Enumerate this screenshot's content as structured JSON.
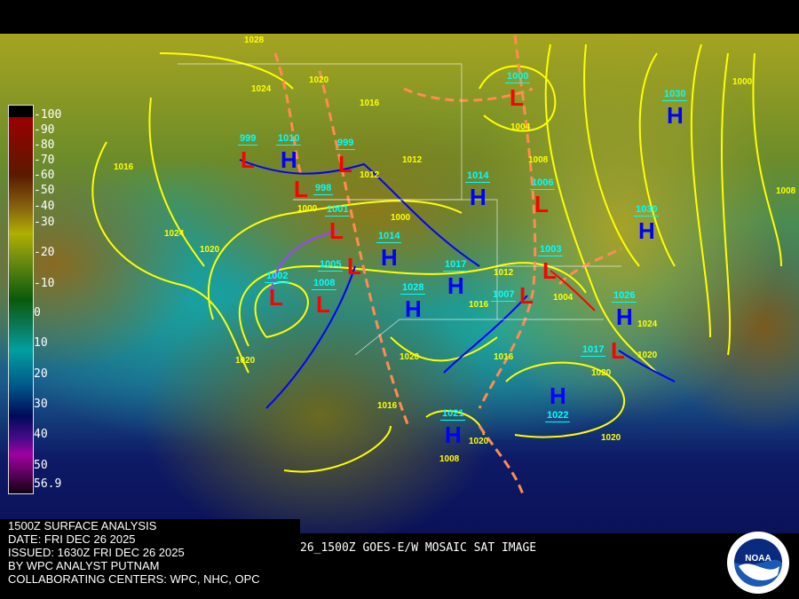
{
  "header": {
    "info_lines": [
      "1500Z SURFACE ANALYSIS",
      "DATE: FRI DEC 26 2025",
      "ISSUED: 1630Z FRI DEC 26 2025",
      "BY WPC ANALYST PUTNAM",
      "COLLABORATING CENTERS: WPC, NHC, OPC"
    ],
    "satellite_label": "26_1500Z GOES-E/W MOSAIC SAT IMAGE"
  },
  "logo": {
    "text": "NOAA"
  },
  "colors": {
    "high": "#0000ff",
    "low": "#ff0000",
    "isobar": "#ffff00",
    "pressure_label": "#00ffff",
    "trough": "#ff8c50"
  },
  "colorbar": {
    "labels": [
      "-100",
      "-90",
      "-80",
      "-70",
      "-60",
      "-50",
      "-40",
      "-30",
      "-20",
      "-10",
      "0",
      "10",
      "20",
      "30",
      "40",
      "50",
      "56.9"
    ]
  },
  "pressure_centers": [
    {
      "type": "H",
      "value": "1010"
    },
    {
      "type": "L",
      "value": "999"
    },
    {
      "type": "L",
      "value": "999"
    },
    {
      "type": "L",
      "value": "998"
    },
    {
      "type": "L",
      "value": "1001"
    },
    {
      "type": "L",
      "value": "1005"
    },
    {
      "type": "H",
      "value": "1014"
    },
    {
      "type": "H",
      "value": "1017"
    },
    {
      "type": "L",
      "value": "1002"
    },
    {
      "type": "L",
      "value": "1008"
    },
    {
      "type": "H",
      "value": "1028"
    },
    {
      "type": "L",
      "value": "1000"
    },
    {
      "type": "H",
      "value": "1030"
    },
    {
      "type": "H",
      "value": "1014"
    },
    {
      "type": "L",
      "value": "1006"
    },
    {
      "type": "H",
      "value": "1030"
    },
    {
      "type": "L",
      "value": "1003"
    },
    {
      "type": "L",
      "value": "1007"
    },
    {
      "type": "H",
      "value": "1026"
    },
    {
      "type": "L",
      "value": "1017"
    },
    {
      "type": "H",
      "value": "1022"
    },
    {
      "type": "H",
      "value": "1021"
    }
  ],
  "isobar_labels": [
    "1028",
    "1024",
    "1020",
    "1016",
    "1012",
    "1004",
    "1008",
    "1016",
    "1024",
    "1020",
    "1012",
    "1016",
    "1016",
    "1020",
    "1020",
    "1016",
    "1020",
    "1020",
    "1024",
    "1020",
    "1020",
    "1008",
    "1004",
    "1000",
    "1000",
    "1012",
    "1000",
    "1008"
  ]
}
